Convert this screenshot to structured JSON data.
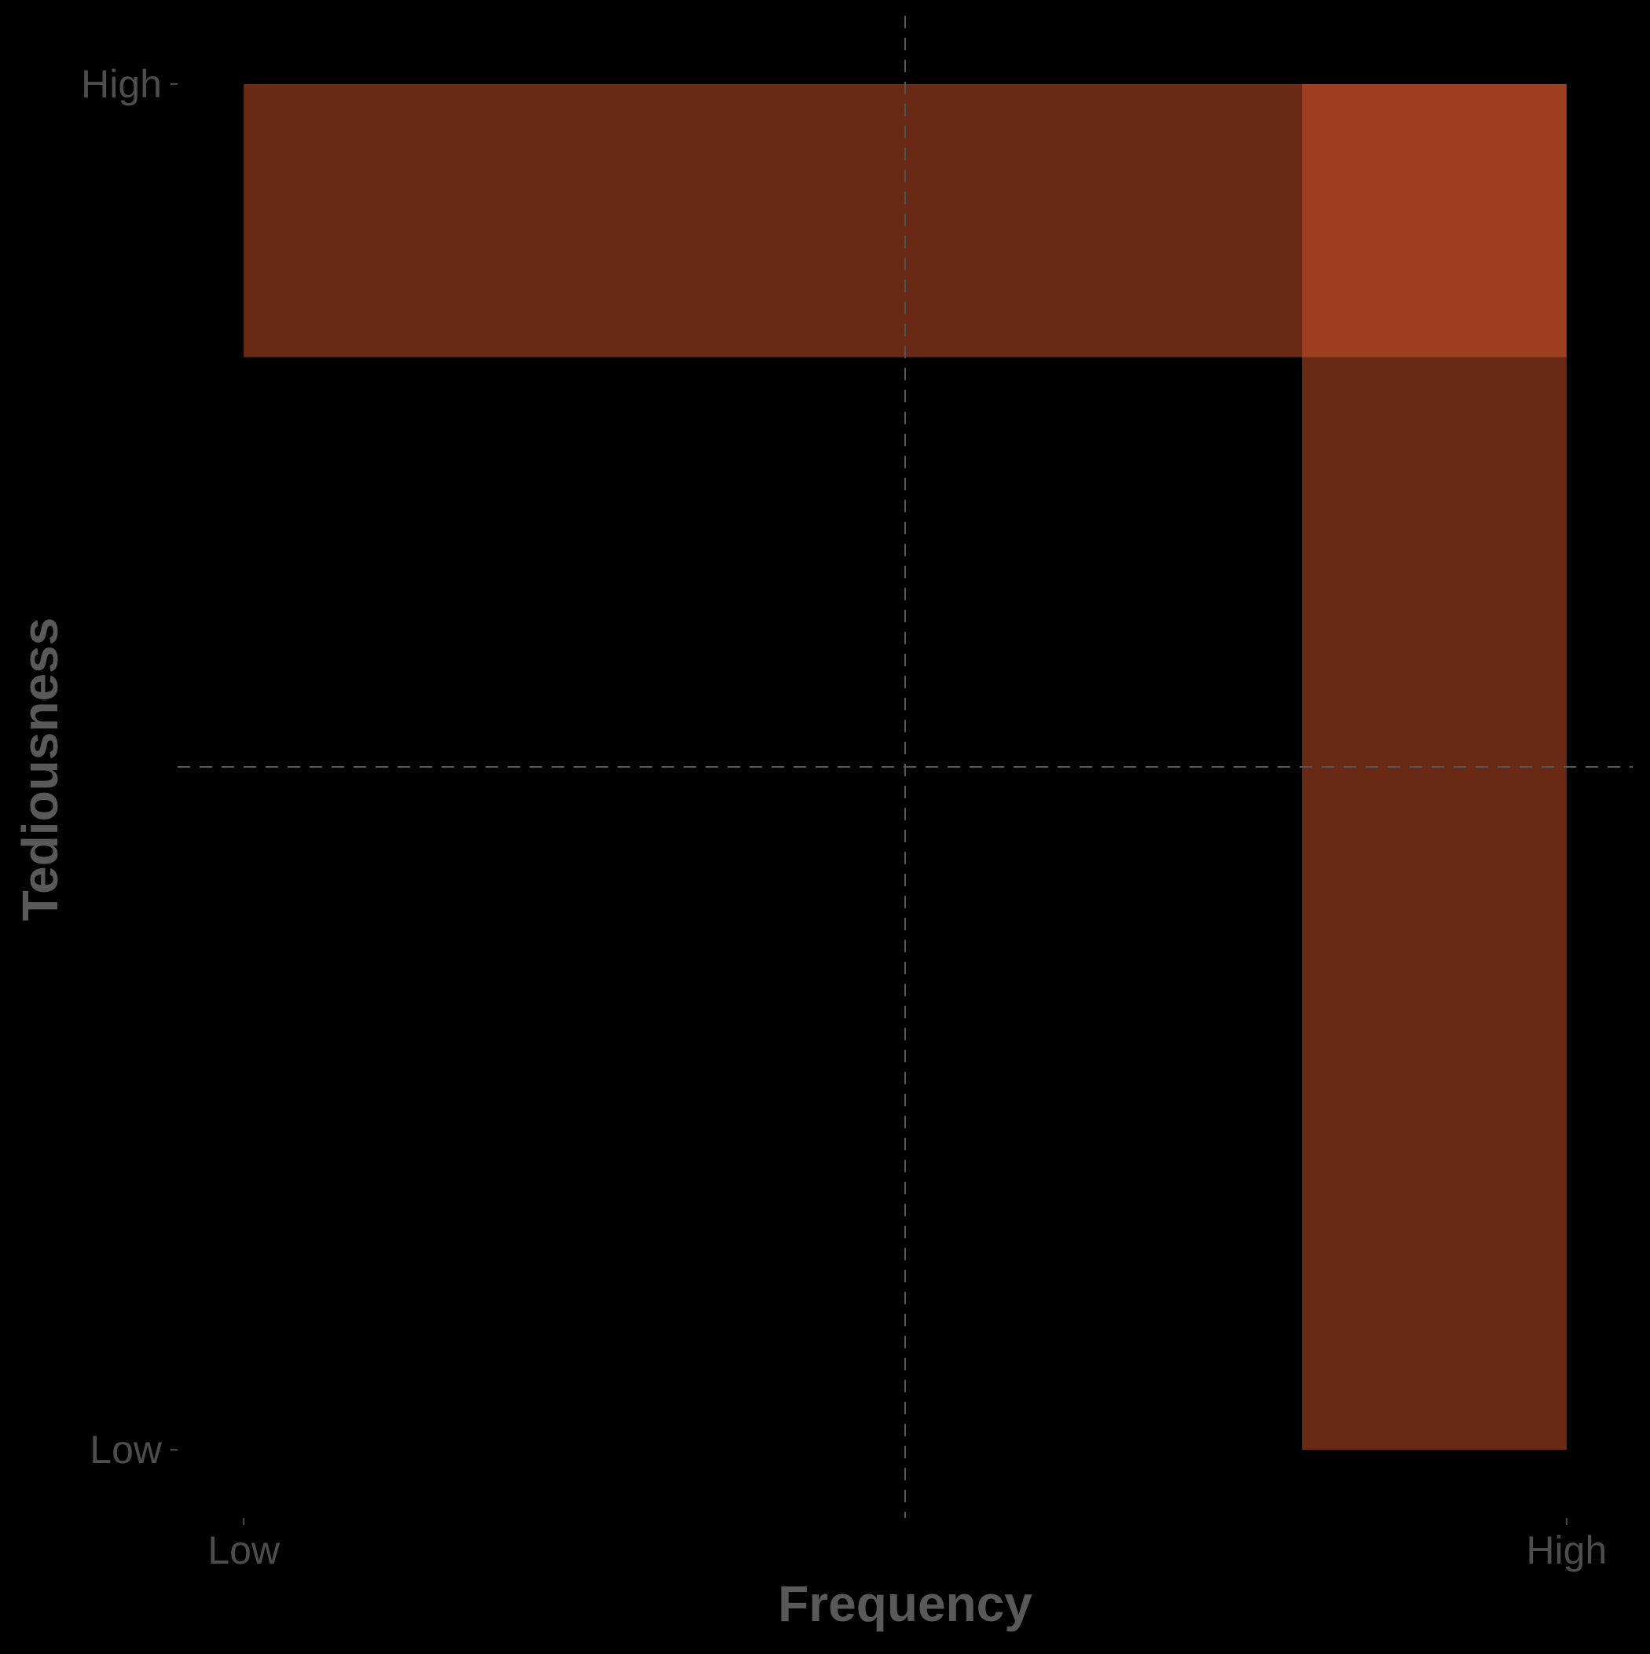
{
  "chart_data": {
    "type": "heatmap",
    "title": "",
    "xlabel": "Frequency",
    "ylabel": "Tediousness",
    "x_ticks": [
      {
        "label": "Low",
        "value": 0
      },
      {
        "label": "High",
        "value": 1
      }
    ],
    "y_ticks": [
      {
        "label": "Low",
        "value": 0
      },
      {
        "label": "High",
        "value": 1
      }
    ],
    "xlim": [
      -0.05,
      1.05
    ],
    "ylim": [
      -0.05,
      1.05
    ],
    "reference_lines": {
      "x": 0.5,
      "y": 0.5,
      "style": "dashed"
    },
    "regions": [
      {
        "x0": 0,
        "x1": 1,
        "y0": 0.8,
        "y1": 1
      },
      {
        "x0": 0.8,
        "x1": 1,
        "y0": 0,
        "y1": 1
      }
    ],
    "grid": false,
    "legend": "none"
  },
  "colors": {
    "background": "#000000",
    "region_fill": "#d2532a",
    "region_opacity": 0.5,
    "axis_text": "#4d4d4d",
    "axis_title": "#595959",
    "reference_line": "#555555"
  }
}
